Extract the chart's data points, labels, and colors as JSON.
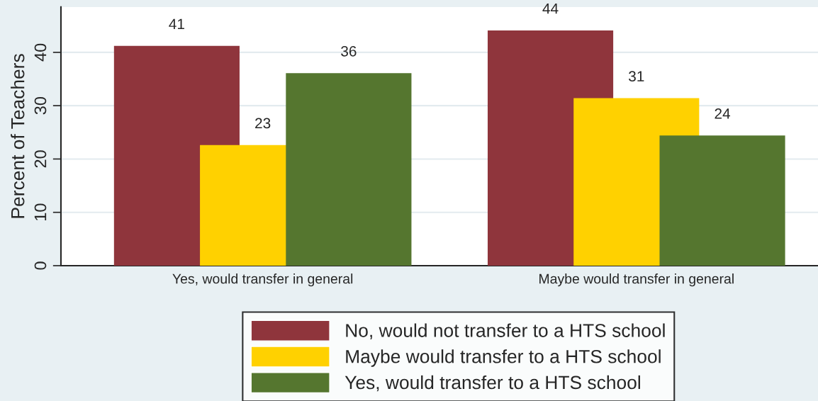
{
  "chart_data": {
    "type": "bar",
    "ylabel": "Percent of Teachers",
    "categories": [
      "Yes, would transfer in general",
      "Maybe would transfer in general"
    ],
    "series": [
      {
        "name": "No, would not transfer to a HTS school",
        "color": "#8f353c",
        "values": [
          41.2,
          44.1
        ],
        "value_labels": [
          "41",
          "44"
        ]
      },
      {
        "name": "Maybe would transfer to a HTS school",
        "color": "#ffd100",
        "values": [
          22.6,
          31.4
        ],
        "value_labels": [
          "23",
          "31"
        ]
      },
      {
        "name": "Yes, would transfer to a HTS school",
        "color": "#55762f",
        "values": [
          36.1,
          24.4
        ],
        "value_labels": [
          "36",
          "24"
        ]
      }
    ],
    "ylim": [
      0,
      48.5
    ],
    "yticks": [
      0,
      10,
      20,
      30,
      40
    ],
    "grid": "y",
    "legend": "bottom"
  }
}
